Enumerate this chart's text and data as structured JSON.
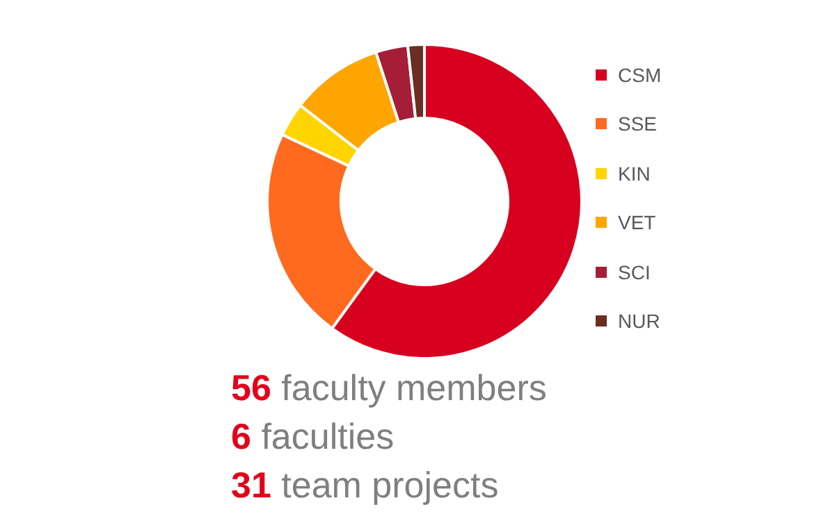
{
  "chart_data": {
    "type": "donut",
    "categories": [
      "CSM",
      "SSE",
      "KIN",
      "VET",
      "SCI",
      "NUR"
    ],
    "values": [
      60,
      22,
      3.5,
      9.5,
      3.3,
      1.7
    ],
    "colors": [
      "#d7001f",
      "#ff6a1f",
      "#ffd400",
      "#ffa500",
      "#a51d36",
      "#6b2e22"
    ],
    "legend": "right",
    "annotations": [
      "56 faculty members",
      "6 faculties",
      "31 team projects"
    ]
  }
}
